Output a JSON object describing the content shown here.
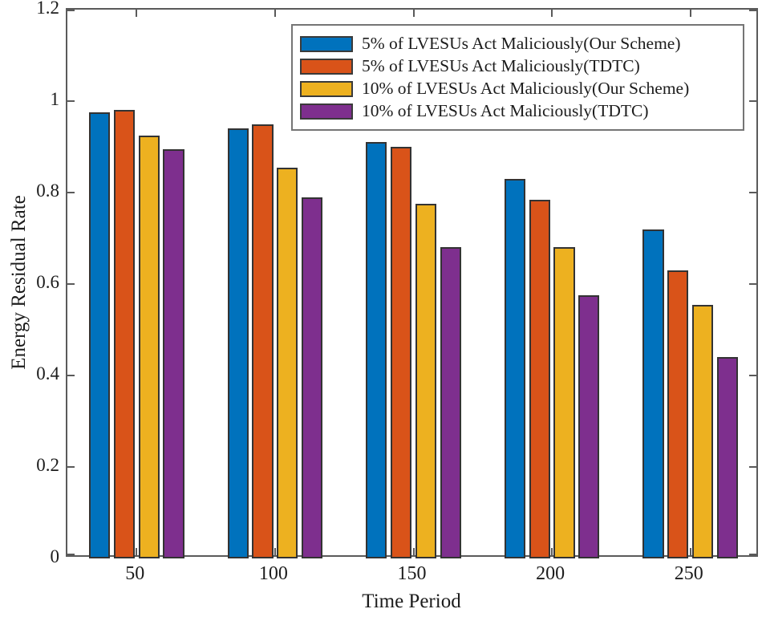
{
  "figure": {
    "background": "#ffffff",
    "frame_color": "#5a5a5a",
    "text_color": "#1c1c1c",
    "bar_edge_color": "#333333"
  },
  "chart_data": {
    "type": "bar",
    "title": "",
    "xlabel": "Time Period",
    "ylabel": "Energy Residual Rate",
    "categories": [
      "50",
      "100",
      "150",
      "200",
      "250"
    ],
    "series": [
      {
        "name": "5% of LVESUs Act Maliciously(Our Scheme)",
        "color": "#0072BD",
        "values": [
          0.975,
          0.94,
          0.91,
          0.83,
          0.72
        ]
      },
      {
        "name": "5% of LVESUs Act Maliciously(TDTC)",
        "color": "#D95319",
        "values": [
          0.98,
          0.95,
          0.9,
          0.785,
          0.63
        ]
      },
      {
        "name": "10% of LVESUs Act Maliciously(Our Scheme)",
        "color": "#EDB120",
        "values": [
          0.925,
          0.855,
          0.775,
          0.68,
          0.555
        ]
      },
      {
        "name": "10% of LVESUs Act Maliciously(TDTC)",
        "color": "#7E2F8E",
        "values": [
          0.895,
          0.79,
          0.68,
          0.575,
          0.44
        ]
      }
    ],
    "ylim": [
      0,
      1.2
    ],
    "yticks": [
      "0",
      "0.2",
      "0.4",
      "0.6",
      "0.8",
      "1",
      "1.2"
    ],
    "grid": false,
    "legend_position": "top-right"
  }
}
